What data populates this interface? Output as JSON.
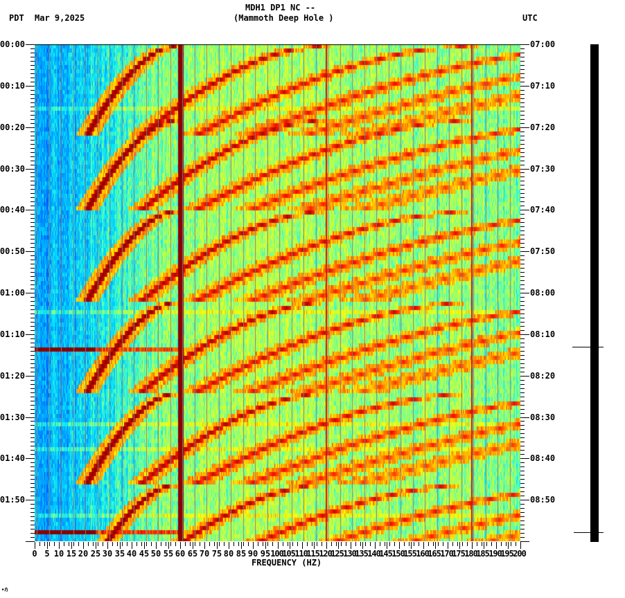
{
  "header": {
    "station_line": "MDH1 DP1 NC --",
    "location_line": "(Mammoth Deep Hole )",
    "timezone_left": "PDT",
    "date": "Mar 9,2025",
    "timezone_right": "UTC"
  },
  "footer": {
    "mark": "∙ℌ"
  },
  "colors": {
    "background": "#ffffff",
    "axis": "#000000",
    "colormap": [
      "#0050ff",
      "#0096ff",
      "#00e6ff",
      "#5cffb0",
      "#c8ff3c",
      "#ffff00",
      "#ff9600",
      "#ff1e00",
      "#8c0000"
    ],
    "grid_line": "#808080",
    "trace": "#000000"
  },
  "chart_data": {
    "type": "heatmap",
    "title": "MDH1 DP1 NC -- (Mammoth Deep Hole )",
    "subtitle": "PDT Mar 9,2025 / UTC",
    "xlabel": "FREQUENCY (HZ)",
    "ylabel_left": "PDT time",
    "ylabel_right": "UTC time",
    "xlim": [
      0,
      200
    ],
    "x_ticks": [
      "0",
      "5",
      "10",
      "15",
      "20",
      "25",
      "30",
      "35",
      "40",
      "45",
      "50",
      "55",
      "60",
      "65",
      "70",
      "75",
      "80",
      "85",
      "90",
      "95",
      "100",
      "105",
      "110",
      "115",
      "120",
      "125",
      "130",
      "135",
      "140",
      "145",
      "150",
      "155",
      "160",
      "165",
      "170",
      "175",
      "180",
      "185",
      "190",
      "195",
      "200"
    ],
    "y_ticks_left": [
      "00:00",
      "00:10",
      "00:20",
      "00:30",
      "00:40",
      "00:50",
      "01:00",
      "01:10",
      "01:20",
      "01:30",
      "01:40",
      "01:50"
    ],
    "y_ticks_right": [
      "07:00",
      "07:10",
      "07:20",
      "07:30",
      "07:40",
      "07:50",
      "08:00",
      "08:10",
      "08:20",
      "08:30",
      "08:40",
      "08:50"
    ],
    "y_minor_ticks_per_major": 10,
    "time_span_minutes": 120,
    "grid": false,
    "legend": "none",
    "features": {
      "persistent_lines_hz": [
        60,
        120,
        180
      ],
      "sweep_period_minutes": 22,
      "sweep_start_minutes": [
        0,
        18,
        40,
        62,
        84,
        106
      ],
      "sweep_harmonics_hz_at_end": [
        21,
        43,
        65,
        87,
        109,
        131
      ],
      "broadband_events_minutes": [
        73,
        117.5
      ],
      "low_frequency_energy_level": "low (blue)",
      "high_frequency_energy_level": "moderate (cyan-yellow)"
    }
  },
  "seismogram_trace": {
    "marker_times_utc": [
      "08:13",
      "08:58"
    ]
  }
}
